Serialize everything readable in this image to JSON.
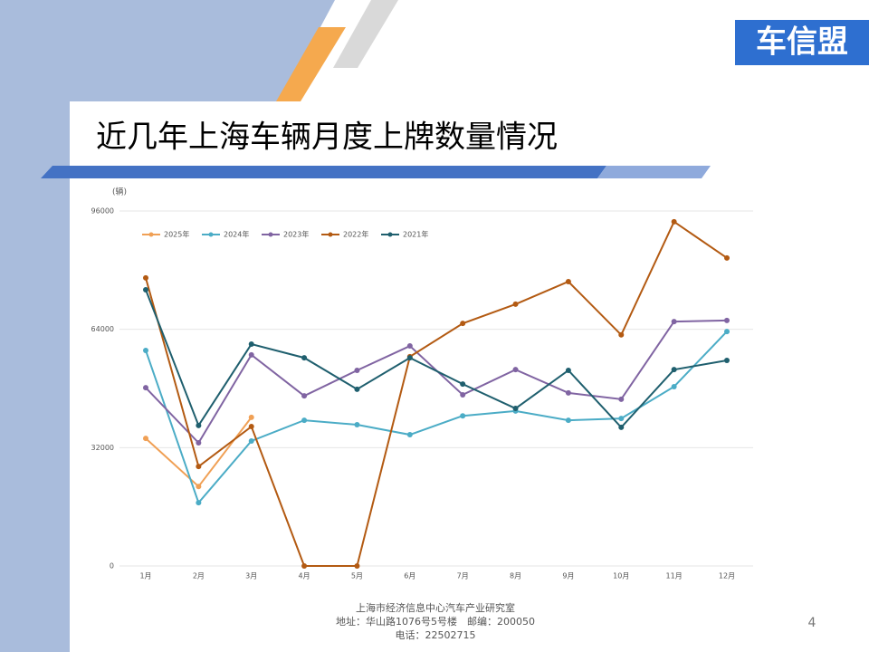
{
  "header": {
    "logo": "车信盟"
  },
  "chart_data": {
    "type": "line",
    "title": "近几年上海车辆月度上牌数量情况",
    "y_label": "(辆)",
    "categories": [
      "1月",
      "2月",
      "3月",
      "4月",
      "5月",
      "6月",
      "7月",
      "8月",
      "9月",
      "10月",
      "11月",
      "12月"
    ],
    "ylim": [
      0,
      96000
    ],
    "yticks": [
      0,
      32000,
      64000,
      96000
    ],
    "grid": true,
    "legend": "top-left",
    "series": [
      {
        "name": "2025年",
        "color": "#f0a055",
        "values": [
          34500,
          21500,
          40200,
          null,
          null,
          null,
          null,
          null,
          null,
          null,
          null,
          null
        ]
      },
      {
        "name": "2024年",
        "color": "#4bacc6",
        "values": [
          58300,
          17100,
          33800,
          39400,
          38200,
          35500,
          40600,
          41900,
          39400,
          39900,
          48500,
          63400
        ]
      },
      {
        "name": "2023年",
        "color": "#8064a2",
        "values": [
          48200,
          33300,
          57100,
          46000,
          52900,
          59500,
          46300,
          53100,
          46800,
          45100,
          66100,
          66400
        ]
      },
      {
        "name": "2022年",
        "color": "#b35a12",
        "values": [
          77900,
          26900,
          37700,
          0,
          0,
          56600,
          65600,
          70800,
          76900,
          62500,
          93100,
          83300
        ]
      },
      {
        "name": "2021年",
        "color": "#1f5f6e",
        "values": [
          74700,
          38000,
          60000,
          56300,
          47800,
          56300,
          49200,
          42600,
          52900,
          37500,
          53100,
          55600
        ]
      }
    ]
  },
  "footer": {
    "lines": [
      "上海市经济信息中心汽车产业研究室",
      "地址：华山路1076号5号楼　邮编：200050",
      "电话：22502715"
    ],
    "page": "4"
  }
}
